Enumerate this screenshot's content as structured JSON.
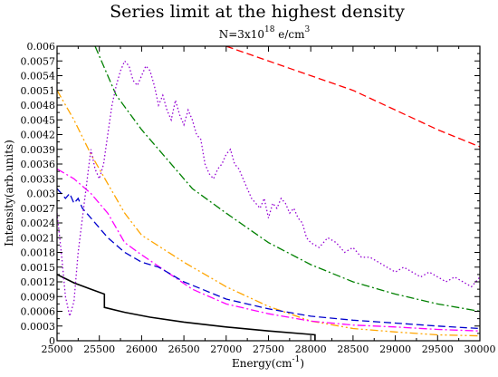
{
  "chart_data": {
    "type": "line",
    "title": "Series limit at the highest density",
    "subtitle": {
      "prefix": "N=3x10",
      "exponent": "18",
      "unit": " e/cm",
      "unit_exponent": "3"
    },
    "xlabel": {
      "text": "Energy(cm",
      "exponent": "-1",
      "suffix": ")"
    },
    "ylabel": "Intensity(arb.units)",
    "xlim": [
      25000,
      30000
    ],
    "ylim": [
      0,
      0.006
    ],
    "xticks": [
      "25000",
      "25500",
      "26000",
      "26500",
      "27000",
      "27500",
      "28000",
      "28500",
      "29000",
      "29500",
      "30000"
    ],
    "yticks": [
      "0",
      "0.0003",
      "0.0006",
      "0.0009",
      "0.0012",
      "0.0015",
      "0.0018",
      "0.0021",
      "0.0024",
      "0.0027",
      "0.003",
      "0.0033",
      "0.0036",
      "0.0039",
      "0.0042",
      "0.0045",
      "0.0048",
      "0.0051",
      "0.0054",
      "0.0057",
      "0.006"
    ],
    "grid": false,
    "legend": "none",
    "series": [
      {
        "color": "#000000",
        "dash": "solid",
        "x": [
          25000,
          25200,
          25400,
          25560,
          25560,
          25800,
          26100,
          26500,
          27000,
          27500,
          28000,
          28050,
          28050
        ],
        "y": [
          0.00135,
          0.00118,
          0.00105,
          0.00095,
          0.00068,
          0.00058,
          0.00048,
          0.00038,
          0.00028,
          0.0002,
          0.00013,
          0.00012,
          0
        ]
      },
      {
        "color": "#ff0000",
        "dash": "dashed",
        "x": [
          27000,
          27500,
          28000,
          28500,
          29000,
          29500,
          30000
        ],
        "y": [
          0.006,
          0.0057,
          0.0054,
          0.0051,
          0.0047,
          0.0043,
          0.00395
        ]
      },
      {
        "color": "#008000",
        "dash": "dashdot",
        "x": [
          25450,
          25700,
          26000,
          26300,
          26600,
          27000,
          27500,
          28000,
          28500,
          29000,
          29500,
          30000
        ],
        "y": [
          0.006,
          0.005,
          0.0043,
          0.0037,
          0.0031,
          0.0026,
          0.002,
          0.00155,
          0.0012,
          0.00095,
          0.00075,
          0.0006
        ]
      },
      {
        "color": "#ffa500",
        "dash": "dashdotdot",
        "x": [
          25000,
          25200,
          25400,
          25600,
          25800,
          26000,
          26500,
          27000,
          27500,
          28000,
          28500,
          29000,
          29500,
          30000
        ],
        "y": [
          0.0051,
          0.0045,
          0.0038,
          0.0032,
          0.0026,
          0.00215,
          0.0016,
          0.0011,
          0.0007,
          0.0004,
          0.00025,
          0.00018,
          0.00012,
          0.0001
        ]
      },
      {
        "color": "#ff00ff",
        "dash": "dashdot",
        "x": [
          25000,
          25200,
          25400,
          25600,
          25800,
          26000,
          26300,
          26600,
          27000,
          27500,
          28000,
          28500,
          29000,
          29500,
          30000
        ],
        "y": [
          0.0035,
          0.0033,
          0.003,
          0.0026,
          0.002,
          0.00175,
          0.0014,
          0.00105,
          0.00075,
          0.00055,
          0.0004,
          0.00032,
          0.00028,
          0.00023,
          0.0002
        ]
      },
      {
        "color": "#0000cd",
        "dash": "dashed",
        "x": [
          25000,
          25050,
          25100,
          25150,
          25200,
          25250,
          25300,
          25350,
          25400,
          25500,
          25600,
          25700,
          25800,
          26000,
          26200,
          26500,
          27000,
          27500,
          28000,
          28500,
          29000,
          29500,
          30000
        ],
        "y": [
          0.0031,
          0.003,
          0.0029,
          0.003,
          0.0028,
          0.0029,
          0.0027,
          0.0026,
          0.0025,
          0.0023,
          0.0021,
          0.00195,
          0.0018,
          0.0016,
          0.0015,
          0.0012,
          0.00085,
          0.00065,
          0.0005,
          0.00042,
          0.00036,
          0.0003,
          0.00025
        ]
      },
      {
        "color": "#9400d3",
        "dash": "dotted",
        "x": [
          25000,
          25050,
          25100,
          25150,
          25200,
          25250,
          25300,
          25350,
          25400,
          25450,
          25500,
          25550,
          25600,
          25650,
          25700,
          25750,
          25800,
          25850,
          25900,
          25950,
          26000,
          26050,
          26100,
          26150,
          26200,
          26250,
          26300,
          26350,
          26400,
          26450,
          26500,
          26550,
          26600,
          26650,
          26700,
          26750,
          26800,
          26850,
          26900,
          26950,
          27000,
          27050,
          27100,
          27150,
          27200,
          27250,
          27300,
          27350,
          27400,
          27450,
          27500,
          27550,
          27600,
          27650,
          27700,
          27750,
          27800,
          27850,
          27900,
          27950,
          28000,
          28100,
          28200,
          28300,
          28400,
          28500,
          28600,
          28700,
          28800,
          28900,
          29000,
          29100,
          29200,
          29300,
          29400,
          29500,
          29600,
          29700,
          29800,
          29900,
          30000
        ],
        "y": [
          0.0026,
          0.0018,
          0.0009,
          0.0005,
          0.0008,
          0.0018,
          0.0025,
          0.0032,
          0.0039,
          0.0035,
          0.0033,
          0.0036,
          0.0042,
          0.0048,
          0.0052,
          0.0055,
          0.0057,
          0.0056,
          0.0053,
          0.0052,
          0.0054,
          0.0056,
          0.0055,
          0.0052,
          0.0048,
          0.005,
          0.0047,
          0.0045,
          0.0049,
          0.0046,
          0.0044,
          0.0047,
          0.0045,
          0.0042,
          0.0041,
          0.0036,
          0.0034,
          0.0033,
          0.0035,
          0.0036,
          0.0038,
          0.0039,
          0.0036,
          0.0035,
          0.0033,
          0.0031,
          0.0029,
          0.0028,
          0.0027,
          0.0029,
          0.0025,
          0.0028,
          0.0027,
          0.0029,
          0.0028,
          0.0026,
          0.0027,
          0.0025,
          0.0024,
          0.0021,
          0.002,
          0.0019,
          0.0021,
          0.002,
          0.0018,
          0.0019,
          0.0017,
          0.0017,
          0.0016,
          0.0015,
          0.0014,
          0.0015,
          0.0014,
          0.0013,
          0.0014,
          0.0013,
          0.0012,
          0.0013,
          0.0012,
          0.0011,
          0.0013
        ]
      }
    ]
  }
}
